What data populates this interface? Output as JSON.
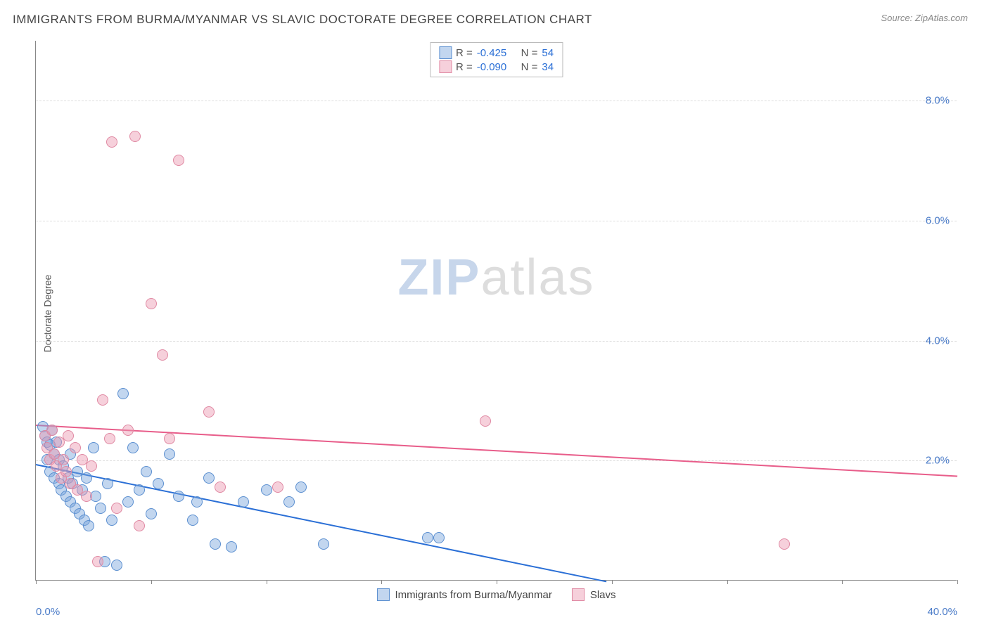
{
  "header": {
    "title": "IMMIGRANTS FROM BURMA/MYANMAR VS SLAVIC DOCTORATE DEGREE CORRELATION CHART",
    "source_prefix": "Source: ",
    "source_name": "ZipAtlas.com"
  },
  "watermark": {
    "text_bold": "ZIP",
    "text_light": "atlas",
    "color_bold": "rgba(130,165,210,0.45)",
    "color_light": "rgba(170,170,170,0.4)"
  },
  "chart": {
    "type": "scatter",
    "xlim": [
      0,
      40
    ],
    "ylim": [
      0,
      9
    ],
    "x_tick_positions": [
      0,
      5,
      10,
      15,
      20,
      25,
      30,
      35,
      40
    ],
    "x_tick_labels_shown": {
      "0": "0.0%",
      "40": "40.0%"
    },
    "y_gridlines": [
      2,
      4,
      6,
      8
    ],
    "y_tick_labels": {
      "2": "2.0%",
      "4": "4.0%",
      "6": "6.0%",
      "8": "8.0%"
    },
    "y_axis_title": "Doctorate Degree",
    "grid_color": "#dddddd",
    "axis_color": "#888888",
    "tick_label_color": "#4a7bc8",
    "background_color": "#ffffff",
    "series": [
      {
        "name": "Immigrants from Burma/Myanmar",
        "fill": "rgba(120,165,220,0.45)",
        "stroke": "#5b8fd0",
        "trend_color": "#2a6fd6",
        "trend": {
          "y_at_x0": 1.95,
          "y_at_xmax": -1.2
        },
        "stats": {
          "R_label": "R =",
          "R": "-0.425",
          "N_label": "N =",
          "N": "54"
        },
        "points": [
          [
            0.3,
            2.55
          ],
          [
            0.4,
            2.4
          ],
          [
            0.5,
            2.3
          ],
          [
            0.5,
            2.0
          ],
          [
            0.6,
            2.25
          ],
          [
            0.6,
            1.8
          ],
          [
            0.7,
            2.5
          ],
          [
            0.8,
            2.1
          ],
          [
            0.8,
            1.7
          ],
          [
            0.9,
            2.3
          ],
          [
            1.0,
            1.6
          ],
          [
            1.0,
            2.0
          ],
          [
            1.1,
            1.5
          ],
          [
            1.2,
            1.9
          ],
          [
            1.3,
            1.4
          ],
          [
            1.4,
            1.7
          ],
          [
            1.5,
            1.3
          ],
          [
            1.5,
            2.1
          ],
          [
            1.6,
            1.6
          ],
          [
            1.7,
            1.2
          ],
          [
            1.8,
            1.8
          ],
          [
            1.9,
            1.1
          ],
          [
            2.0,
            1.5
          ],
          [
            2.1,
            1.0
          ],
          [
            2.2,
            1.7
          ],
          [
            2.3,
            0.9
          ],
          [
            2.5,
            2.2
          ],
          [
            2.6,
            1.4
          ],
          [
            2.8,
            1.2
          ],
          [
            3.0,
            0.3
          ],
          [
            3.1,
            1.6
          ],
          [
            3.3,
            1.0
          ],
          [
            3.5,
            0.25
          ],
          [
            3.8,
            3.1
          ],
          [
            4.0,
            1.3
          ],
          [
            4.2,
            2.2
          ],
          [
            4.5,
            1.5
          ],
          [
            4.8,
            1.8
          ],
          [
            5.0,
            1.1
          ],
          [
            5.3,
            1.6
          ],
          [
            5.8,
            2.1
          ],
          [
            6.2,
            1.4
          ],
          [
            6.8,
            1.0
          ],
          [
            7.0,
            1.3
          ],
          [
            7.5,
            1.7
          ],
          [
            7.8,
            0.6
          ],
          [
            8.5,
            0.55
          ],
          [
            9.0,
            1.3
          ],
          [
            10.0,
            1.5
          ],
          [
            11.0,
            1.3
          ],
          [
            11.5,
            1.55
          ],
          [
            12.5,
            0.6
          ],
          [
            17.0,
            0.7
          ],
          [
            17.5,
            0.7
          ]
        ]
      },
      {
        "name": "Slavs",
        "fill": "rgba(235,150,175,0.45)",
        "stroke": "#e089a3",
        "trend_color": "#e85d8a",
        "trend": {
          "y_at_x0": 2.6,
          "y_at_xmax": 1.75
        },
        "stats": {
          "R_label": "R =",
          "R": "-0.090",
          "N_label": "N =",
          "N": "34"
        },
        "points": [
          [
            0.4,
            2.4
          ],
          [
            0.5,
            2.2
          ],
          [
            0.6,
            2.0
          ],
          [
            0.7,
            2.5
          ],
          [
            0.8,
            2.1
          ],
          [
            0.9,
            1.9
          ],
          [
            1.0,
            2.3
          ],
          [
            1.1,
            1.7
          ],
          [
            1.2,
            2.0
          ],
          [
            1.3,
            1.8
          ],
          [
            1.4,
            2.4
          ],
          [
            1.5,
            1.6
          ],
          [
            1.7,
            2.2
          ],
          [
            1.8,
            1.5
          ],
          [
            2.0,
            2.0
          ],
          [
            2.2,
            1.4
          ],
          [
            2.4,
            1.9
          ],
          [
            2.7,
            0.3
          ],
          [
            2.9,
            3.0
          ],
          [
            3.2,
            2.35
          ],
          [
            3.5,
            1.2
          ],
          [
            4.0,
            2.5
          ],
          [
            4.5,
            0.9
          ],
          [
            5.0,
            4.6
          ],
          [
            5.5,
            3.75
          ],
          [
            5.8,
            2.35
          ],
          [
            6.2,
            7.0
          ],
          [
            7.5,
            2.8
          ],
          [
            8.0,
            1.55
          ],
          [
            10.5,
            1.55
          ],
          [
            3.3,
            7.3
          ],
          [
            4.3,
            7.4
          ],
          [
            19.5,
            2.65
          ],
          [
            32.5,
            0.6
          ]
        ]
      }
    ]
  }
}
